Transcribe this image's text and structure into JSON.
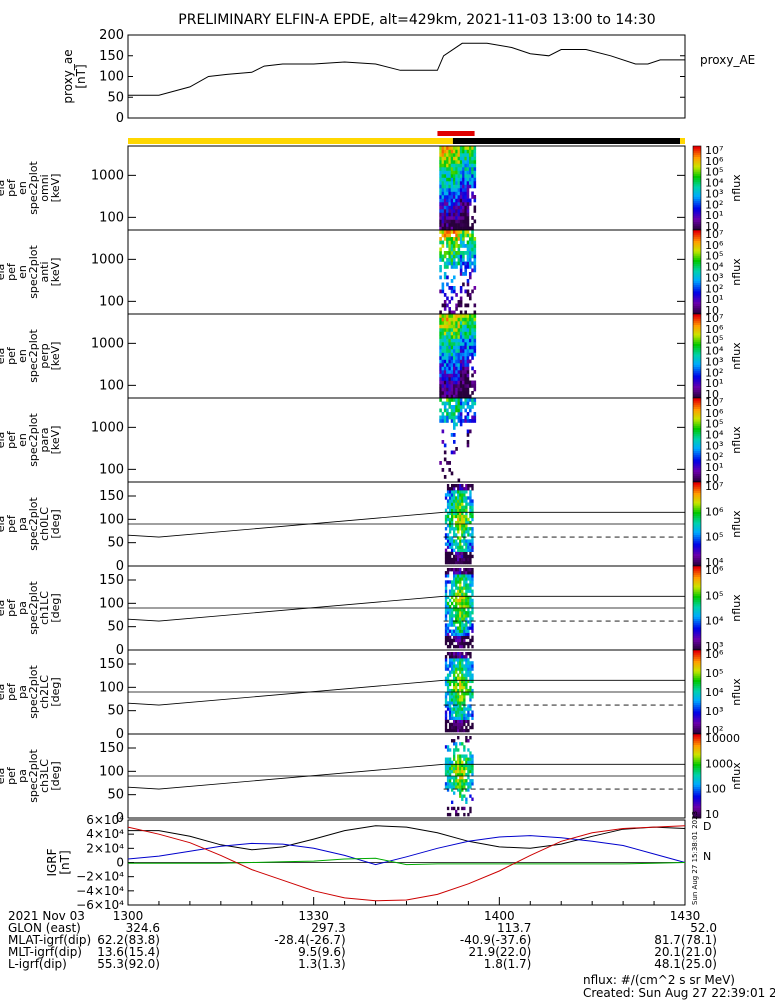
{
  "title": "PRELIMINARY ELFIN-A EPDE, alt=429km, 2021-11-03 13:00 to 14:30",
  "side_stamp": "Sun Aug 27 15:38:01 2023",
  "chart_data": [
    {
      "type": "line",
      "panel": "proxy_ae",
      "ylabel": [
        "proxy_ae",
        "[nT]"
      ],
      "legend": "proxy_AE",
      "ylim": [
        0,
        200
      ],
      "yticks": [
        0,
        50,
        100,
        150,
        200
      ],
      "x_minutes": [
        0,
        5,
        10,
        13,
        16,
        20,
        22,
        25,
        30,
        35,
        40,
        44,
        46,
        50,
        51,
        54,
        58,
        62,
        65,
        68,
        70,
        74,
        78,
        82,
        84,
        86,
        90
      ],
      "values": [
        55,
        55,
        75,
        100,
        105,
        110,
        125,
        130,
        130,
        135,
        130,
        115,
        115,
        115,
        150,
        180,
        180,
        170,
        155,
        150,
        165,
        165,
        150,
        130,
        130,
        140,
        140
      ]
    },
    {
      "type": "heatmap",
      "panel": "spec-omni",
      "ylabel": [
        "ela",
        "pef",
        "en",
        "spec2plot",
        "omni",
        "[keV]"
      ],
      "yscale": "log",
      "yticks": [
        "100",
        "1000"
      ],
      "colorbar": {
        "label": "nflux",
        "ticks": [
          "10",
          "10¹",
          "10²",
          "10³",
          "10⁴",
          "10⁵",
          "10⁶",
          "10⁷"
        ]
      }
    },
    {
      "type": "heatmap",
      "panel": "spec-anti",
      "ylabel": [
        "ela",
        "pef",
        "en",
        "spec2plot",
        "anti",
        "[keV]"
      ],
      "yscale": "log",
      "yticks": [
        "100",
        "1000"
      ],
      "colorbar": {
        "label": "nflux",
        "ticks": [
          "10",
          "10¹",
          "10²",
          "10³",
          "10⁴",
          "10⁵",
          "10⁶",
          "10⁷"
        ]
      }
    },
    {
      "type": "heatmap",
      "panel": "spec-perp",
      "ylabel": [
        "ela",
        "pef",
        "en",
        "spec2plot",
        "perp",
        "[keV]"
      ],
      "yscale": "log",
      "yticks": [
        "100",
        "1000"
      ],
      "colorbar": {
        "label": "nflux",
        "ticks": [
          "10",
          "10¹",
          "10²",
          "10³",
          "10⁴",
          "10⁵",
          "10⁶",
          "10⁷"
        ]
      }
    },
    {
      "type": "heatmap",
      "panel": "spec-para",
      "ylabel": [
        "ela",
        "pef",
        "en",
        "spec2plot",
        "para",
        "[keV]"
      ],
      "yscale": "log",
      "yticks": [
        "100",
        "1000"
      ],
      "colorbar": {
        "label": "nflux",
        "ticks": [
          "10",
          "10¹",
          "10²",
          "10³",
          "10⁴",
          "10⁵",
          "10⁶",
          "10⁷"
        ]
      }
    },
    {
      "type": "heatmap",
      "panel": "pa-ch0",
      "ylabel": [
        "ela",
        "pef",
        "pa",
        "spec2plot",
        "ch0LC",
        "[deg]"
      ],
      "ylim": [
        0,
        180
      ],
      "yticks": [
        "0",
        "50",
        "100",
        "150"
      ],
      "colorbar": {
        "label": "nflux",
        "ticks": [
          "10⁴",
          "10⁵",
          "10⁶",
          "10⁷"
        ]
      }
    },
    {
      "type": "heatmap",
      "panel": "pa-ch1",
      "ylabel": [
        "ela",
        "pef",
        "pa",
        "spec2plot",
        "ch1LC",
        "[deg]"
      ],
      "ylim": [
        0,
        180
      ],
      "yticks": [
        "0",
        "50",
        "100",
        "150"
      ],
      "colorbar": {
        "label": "nflux",
        "ticks": [
          "10³",
          "10⁴",
          "10⁵",
          "10⁶"
        ]
      }
    },
    {
      "type": "heatmap",
      "panel": "pa-ch2",
      "ylabel": [
        "ela",
        "pef",
        "pa",
        "spec2plot",
        "ch2LC",
        "[deg]"
      ],
      "ylim": [
        0,
        180
      ],
      "yticks": [
        "0",
        "50",
        "100",
        "150"
      ],
      "colorbar": {
        "label": "nflux",
        "ticks": [
          "10²",
          "10³",
          "10⁴",
          "10⁵",
          "10⁶"
        ]
      }
    },
    {
      "type": "heatmap",
      "panel": "pa-ch3",
      "ylabel": [
        "ela",
        "pef",
        "pa",
        "spec2plot",
        "ch3LC",
        "[deg]"
      ],
      "ylim": [
        0,
        180
      ],
      "yticks": [
        "0",
        "50",
        "100",
        "150"
      ],
      "colorbar": {
        "label": "nflux",
        "ticks": [
          "10",
          "100",
          "1000",
          "10000"
        ]
      }
    },
    {
      "type": "line",
      "panel": "igrf",
      "ylabel": [
        "IGRF",
        "[nT]"
      ],
      "ylim": [
        -60000,
        60000
      ],
      "yticks": [
        "−6×10⁴",
        "−4×10⁴",
        "−2×10⁴",
        "0",
        "2×10⁴",
        "4×10⁴",
        "6×10⁴"
      ],
      "legend": [
        "D",
        "D",
        "N"
      ],
      "x_minutes": [
        0,
        5,
        10,
        15,
        20,
        25,
        30,
        35,
        40,
        45,
        50,
        55,
        60,
        65,
        70,
        75,
        80,
        85,
        90
      ],
      "series": [
        {
          "color": "#000000",
          "values": [
            45000,
            45000,
            37000,
            25000,
            18000,
            22000,
            33000,
            45000,
            52000,
            50000,
            42000,
            30000,
            22000,
            20000,
            26000,
            37000,
            47000,
            50000,
            48000
          ]
        },
        {
          "color": "#0000cc",
          "values": [
            5000,
            9000,
            16000,
            23000,
            27000,
            26000,
            20000,
            10000,
            -3000,
            8000,
            20000,
            30000,
            36000,
            38000,
            35000,
            30000,
            24000,
            12000,
            0
          ]
        },
        {
          "color": "#00aa00",
          "values": [
            -1000,
            -1000,
            -1000,
            -1000,
            0,
            1000,
            2000,
            5000,
            6000,
            -3000,
            -2000,
            -2000,
            -2000,
            -2000,
            -2000,
            -2000,
            -2000,
            -1000,
            0
          ]
        },
        {
          "color": "#cc0000",
          "values": [
            50000,
            40000,
            28000,
            10000,
            -10000,
            -25000,
            -40000,
            -50000,
            -54000,
            -53000,
            -45000,
            -30000,
            -12000,
            10000,
            30000,
            42000,
            48000,
            50000,
            52000
          ]
        }
      ]
    }
  ],
  "x_axis": {
    "ticks": [
      "1300",
      "1330",
      "1400",
      "1430"
    ],
    "rows": [
      {
        "label": "2021 Nov 03",
        "values": [
          "",
          "",
          "",
          ""
        ]
      },
      {
        "label": "GLON (east)",
        "values": [
          "324.6",
          "297.3",
          "113.7",
          "52.0"
        ]
      },
      {
        "label": "MLAT-igrf(dip)",
        "values": [
          "62.2(83.8)",
          "-28.4(-26.7)",
          "-40.9(-37.6)",
          "81.7(78.1)"
        ]
      },
      {
        "label": "MLT-igrf(dip)",
        "values": [
          "13.6(15.4)",
          "9.5(9.6)",
          "21.9(22.0)",
          "20.1(21.0)"
        ]
      },
      {
        "label": "L-igrf(dip)",
        "values": [
          "55.3(92.0)",
          "1.3(1.3)",
          "1.8(1.7)",
          "48.1(25.0)"
        ]
      }
    ]
  },
  "footer": {
    "units": "nflux: #/(cm^2 s sr MeV)",
    "created": "Created: Sun Aug 27 22:39:01 2023"
  }
}
